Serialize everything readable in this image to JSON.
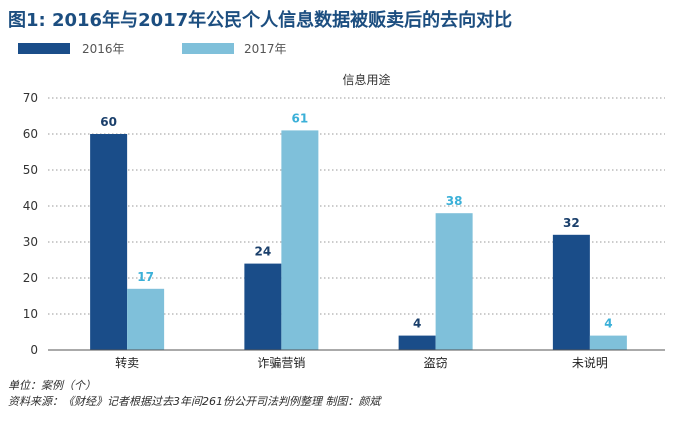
{
  "title": "图1: 2016年与2017年公民个人信息数据被贩卖后的去向对比",
  "colors": {
    "series_2016": "#1a4d89",
    "series_2017": "#7fc0da",
    "title": "#1c4e80",
    "label_2016": "#1a3f6b",
    "label_2017": "#3bb0d8"
  },
  "chart_data": {
    "type": "bar",
    "subtitle": "信息用途",
    "categories": [
      "转卖",
      "诈骗营销",
      "盗窃",
      "未说明"
    ],
    "series": [
      {
        "name": "2016年",
        "values": [
          60,
          24,
          4,
          32
        ]
      },
      {
        "name": "2017年",
        "values": [
          17,
          61,
          38,
          4
        ]
      }
    ],
    "data_labels": [
      [
        "60",
        "24",
        "4",
        "32"
      ],
      [
        "17",
        "61",
        "38",
        "4"
      ]
    ],
    "yticks": [
      "0",
      "10",
      "20",
      "30",
      "40",
      "50",
      "60",
      "70"
    ],
    "ylim": [
      0,
      70
    ],
    "grid": "dotted horizontal",
    "legend": "top-left",
    "xlabel": "",
    "ylabel": ""
  },
  "footer": {
    "unit": "单位：案例（个）",
    "source": "资料来源：《财经》记者根据过去3年间261份公开司法判例整理    制图：颜斌"
  }
}
